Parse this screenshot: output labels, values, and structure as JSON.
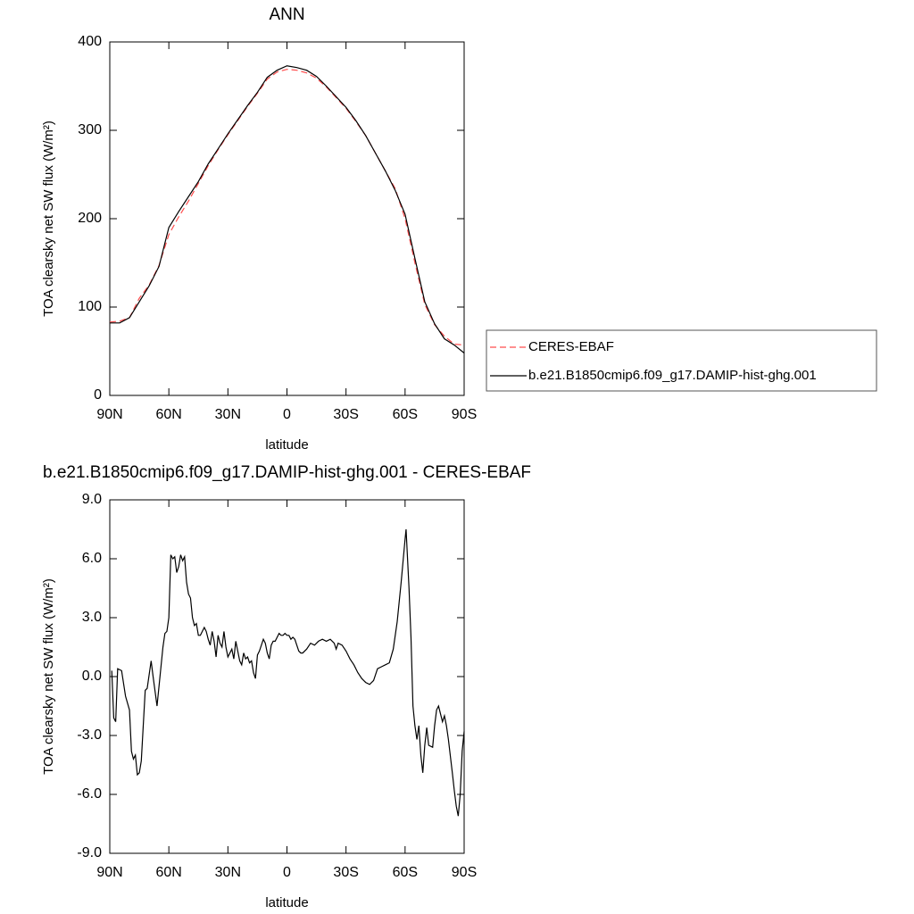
{
  "chart_data": [
    {
      "type": "line",
      "title": "ANN",
      "xlabel": "latitude",
      "ylabel": "TOA clearsky net SW flux (W/m²)",
      "x": [
        90,
        85,
        80,
        75,
        70,
        65,
        60,
        55,
        50,
        45,
        40,
        35,
        30,
        25,
        20,
        15,
        10,
        5,
        0,
        -5,
        -10,
        -15,
        -20,
        -25,
        -30,
        -35,
        -40,
        -45,
        -50,
        -55,
        -60,
        -65,
        -70,
        -75,
        -80,
        -85,
        -90
      ],
      "series": [
        {
          "name": "CERES-EBAF",
          "color": "#ff4d4d",
          "linestyle": "dashed",
          "values": [
            83,
            84,
            88,
            110,
            125,
            147,
            182,
            202,
            220,
            240,
            260,
            278,
            295,
            311,
            327,
            342,
            358,
            366,
            369,
            368,
            365,
            359,
            349,
            337,
            325,
            310,
            294,
            274,
            254,
            234,
            200,
            150,
            103,
            80,
            67,
            58,
            57
          ]
        },
        {
          "name": "b.e21.B1850cmip6.f09_g17.DAMIP-hist-ghg.001",
          "color": "#000000",
          "linestyle": "solid",
          "values": [
            82,
            82,
            88,
            106,
            124,
            146,
            190,
            208,
            225,
            242,
            262,
            279,
            296,
            312,
            328,
            343,
            360,
            368,
            373,
            371,
            368,
            361,
            350,
            338,
            326,
            311,
            294,
            274,
            254,
            232,
            205,
            155,
            106,
            81,
            64,
            57,
            48
          ]
        }
      ],
      "xlim": [
        90,
        -90
      ],
      "xticks": [
        {
          "value": 90,
          "label": "90N"
        },
        {
          "value": 60,
          "label": "60N"
        },
        {
          "value": 30,
          "label": "30N"
        },
        0,
        {
          "value": -30,
          "label": "30S"
        },
        {
          "value": -60,
          "label": "60S"
        },
        {
          "value": -90,
          "label": "90S"
        }
      ],
      "ylim": [
        0,
        400
      ],
      "yticks": [
        0,
        100,
        200,
        300,
        400
      ],
      "legend": "right"
    },
    {
      "type": "line",
      "title": "b.e21.B1850cmip6.f09_g17.DAMIP-hist-ghg.001 - CERES-EBAF",
      "xlabel": "latitude",
      "ylabel": "TOA clearsky net SW flux (W/m²)",
      "x": [
        89,
        88,
        87,
        86,
        84,
        82,
        80,
        79,
        78,
        77,
        76,
        75,
        74,
        73,
        72,
        71,
        69,
        68,
        66,
        64,
        63,
        62,
        61,
        60,
        59,
        58,
        57,
        56,
        55,
        54,
        53,
        52,
        51,
        50,
        49,
        48,
        47,
        46,
        45,
        44,
        43,
        42,
        41,
        40,
        39,
        38,
        37,
        36,
        35,
        34,
        33,
        32,
        31,
        30,
        28,
        27,
        26,
        25,
        24,
        23,
        22,
        21,
        20,
        19,
        18,
        17,
        16,
        15,
        14,
        13,
        12,
        11,
        10,
        9,
        8,
        7,
        6,
        5,
        4,
        3,
        2,
        1,
        0,
        -1,
        -2,
        -3,
        -4,
        -6,
        -7,
        -8,
        -10,
        -12,
        -14,
        -16,
        -18,
        -20,
        -22,
        -24,
        -25,
        -26,
        -28,
        -30,
        -32,
        -34,
        -36,
        -38,
        -40,
        -42,
        -44,
        -46,
        -48,
        -50,
        -52,
        -54,
        -56,
        -58,
        -60,
        -60.5,
        -62,
        -63,
        -64,
        -65,
        -66,
        -67,
        -68,
        -69,
        -70,
        -71,
        -72,
        -74,
        -75,
        -76,
        -77,
        -78,
        -79,
        -80,
        -81,
        -82,
        -84,
        -85,
        -86,
        -87,
        -88,
        -89,
        -90
      ],
      "series": [
        {
          "color": "#000000",
          "linestyle": "solid",
          "values": [
            0.3,
            -2.1,
            -2.3,
            0.4,
            0.3,
            -1.0,
            -1.7,
            -3.8,
            -4.2,
            -4.0,
            -5.0,
            -4.9,
            -4.3,
            -2.5,
            -0.7,
            -0.6,
            0.8,
            0.0,
            -1.5,
            0.5,
            1.5,
            2.2,
            2.3,
            3.0,
            6.2,
            6.0,
            6.1,
            5.3,
            5.6,
            6.2,
            5.9,
            6.1,
            4.8,
            4.2,
            4.0,
            3.0,
            2.6,
            2.7,
            2.1,
            2.1,
            2.3,
            2.5,
            2.3,
            1.9,
            1.6,
            2.3,
            1.8,
            1.0,
            2.1,
            1.7,
            1.5,
            2.3,
            1.5,
            1.0,
            1.4,
            0.9,
            1.8,
            1.3,
            0.8,
            0.6,
            1.2,
            0.9,
            1.0,
            0.7,
            0.8,
            0.2,
            -0.1,
            1.1,
            1.3,
            1.6,
            1.9,
            1.7,
            1.2,
            0.9,
            1.6,
            1.8,
            1.8,
            2.0,
            2.2,
            2.1,
            2.1,
            2.2,
            2.1,
            2.1,
            1.9,
            2.0,
            1.9,
            1.3,
            1.2,
            1.2,
            1.4,
            1.7,
            1.6,
            1.8,
            1.9,
            1.8,
            1.9,
            1.7,
            1.4,
            1.7,
            1.6,
            1.3,
            0.9,
            0.6,
            0.2,
            -0.1,
            -0.3,
            -0.4,
            -0.2,
            0.4,
            0.5,
            0.6,
            0.7,
            1.4,
            2.8,
            4.8,
            7.0,
            7.5,
            4.5,
            2.0,
            -1.5,
            -2.5,
            -3.2,
            -2.5,
            -4.0,
            -4.9,
            -3.5,
            -2.6,
            -3.5,
            -3.6,
            -2.5,
            -1.7,
            -1.5,
            -1.9,
            -2.3,
            -2.0,
            -2.5,
            -3.2,
            -4.9,
            -5.8,
            -6.6,
            -7.1,
            -6.0,
            -3.8,
            -2.8
          ]
        }
      ],
      "xlim": [
        90,
        -90
      ],
      "xticks": [
        {
          "value": 90,
          "label": "90N"
        },
        {
          "value": 60,
          "label": "60N"
        },
        {
          "value": 30,
          "label": "30N"
        },
        0,
        {
          "value": -30,
          "label": "30S"
        },
        {
          "value": -60,
          "label": "60S"
        },
        {
          "value": -90,
          "label": "90S"
        }
      ],
      "ylim": [
        -9,
        9
      ],
      "yticks": [
        {
          "value": -9,
          "label": "-9.0"
        },
        {
          "value": -6,
          "label": "-6.0"
        },
        {
          "value": -3,
          "label": "-3.0"
        },
        {
          "value": 0,
          "label": "0.0"
        },
        {
          "value": 3,
          "label": "3.0"
        },
        {
          "value": 6,
          "label": "6.0"
        },
        {
          "value": 9,
          "label": "9.0"
        }
      ]
    }
  ]
}
